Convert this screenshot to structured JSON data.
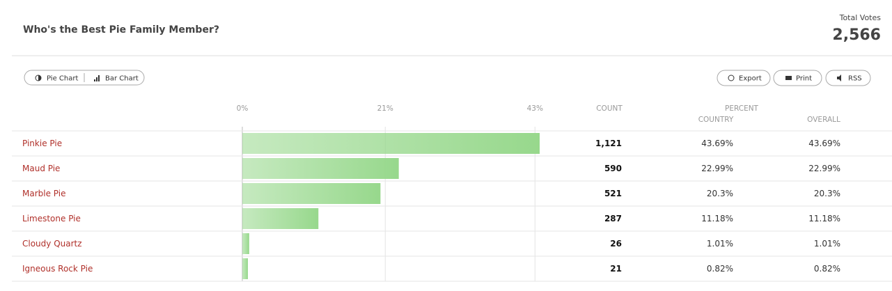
{
  "header": {
    "title": "Who's the Best Pie Family Member?",
    "total_label": "Total Votes",
    "total": "2,566"
  },
  "toolbar": {
    "views": [
      "Pie Chart",
      "Bar Chart"
    ],
    "actions": [
      "Export",
      "Print",
      "RSS"
    ]
  },
  "chart_data": {
    "type": "bar",
    "orientation": "horizontal",
    "categories": [
      "Pinkie Pie",
      "Maud Pie",
      "Marble Pie",
      "Limestone Pie",
      "Cloudy Quartz",
      "Igneous Rock Pie"
    ],
    "values": [
      43.69,
      22.99,
      20.3,
      11.18,
      1.01,
      0.82
    ],
    "value_labels": [
      "43.69%",
      "22.99%",
      "20.3%",
      "11.18%",
      "1.01%",
      "0.82%"
    ],
    "color": "#97d88c",
    "xlim": [
      0,
      43.69
    ],
    "xticks": [
      {
        "value": 0,
        "label": "0%"
      },
      {
        "value": 21,
        "label": "21%"
      },
      {
        "value": 43,
        "label": "43%"
      }
    ],
    "grid": true
  },
  "table": {
    "columns": {
      "count": "COUNT",
      "percent": "PERCENT",
      "country": "COUNTRY",
      "overall": "OVERALL"
    },
    "counts": [
      "1,121",
      "590",
      "521",
      "287",
      "26",
      "21"
    ],
    "overall": [
      "43.69%",
      "22.99%",
      "20.3%",
      "11.18%",
      "1.01%",
      "0.82%"
    ]
  }
}
